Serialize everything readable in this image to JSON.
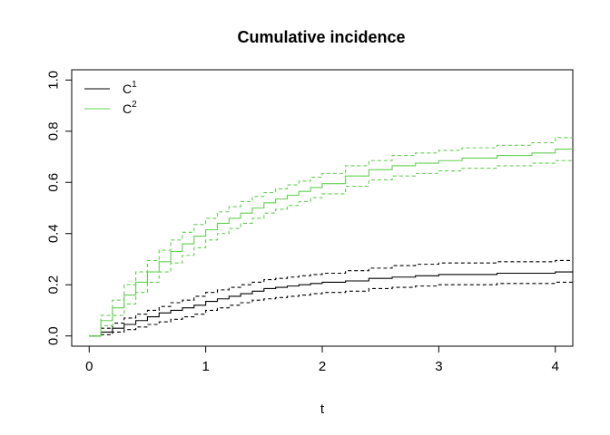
{
  "chart_data": {
    "type": "line",
    "title": "Cumulative incidence",
    "xlabel": "t",
    "ylabel": "",
    "xlim": [
      -0.15,
      4.15
    ],
    "ylim": [
      -0.04,
      1.04
    ],
    "xticks": [
      0,
      1,
      2,
      3,
      4
    ],
    "yticks": [
      0.0,
      0.2,
      0.4,
      0.6,
      0.8,
      1.0
    ],
    "xtick_labels": [
      "0",
      "1",
      "2",
      "3",
      "4"
    ],
    "ytick_labels": [
      "0.0",
      "0.2",
      "0.4",
      "0.6",
      "0.8",
      "1.0"
    ],
    "grid": false,
    "legend_position": "top-left",
    "legend": [
      {
        "base": "C",
        "sup": "1",
        "color": "#000000"
      },
      {
        "base": "C",
        "sup": "2",
        "color": "#61D04F"
      }
    ],
    "series": [
      {
        "color": "#000000",
        "step": true,
        "estimate": {
          "x": [
            0,
            0.1,
            0.2,
            0.3,
            0.4,
            0.5,
            0.6,
            0.7,
            0.8,
            0.9,
            1.0,
            1.1,
            1.2,
            1.3,
            1.4,
            1.5,
            1.6,
            1.7,
            1.8,
            1.9,
            2.0,
            2.2,
            2.4,
            2.6,
            2.8,
            3.0,
            3.5,
            4.0,
            4.15
          ],
          "y": [
            0,
            0.015,
            0.03,
            0.045,
            0.06,
            0.075,
            0.09,
            0.1,
            0.11,
            0.12,
            0.135,
            0.145,
            0.155,
            0.165,
            0.175,
            0.185,
            0.19,
            0.195,
            0.2,
            0.205,
            0.21,
            0.215,
            0.225,
            0.23,
            0.235,
            0.24,
            0.245,
            0.25,
            0.25
          ]
        },
        "lower": {
          "x": [
            0,
            0.1,
            0.2,
            0.3,
            0.4,
            0.5,
            0.6,
            0.7,
            0.8,
            0.9,
            1.0,
            1.1,
            1.2,
            1.3,
            1.4,
            1.5,
            1.6,
            1.7,
            1.8,
            1.9,
            2.0,
            2.2,
            2.4,
            2.6,
            2.8,
            3.0,
            3.5,
            4.0,
            4.15
          ],
          "y": [
            0,
            0.005,
            0.015,
            0.025,
            0.035,
            0.045,
            0.055,
            0.065,
            0.075,
            0.085,
            0.1,
            0.11,
            0.12,
            0.13,
            0.14,
            0.145,
            0.15,
            0.155,
            0.16,
            0.165,
            0.17,
            0.175,
            0.185,
            0.19,
            0.195,
            0.2,
            0.205,
            0.21,
            0.21
          ]
        },
        "upper": {
          "x": [
            0,
            0.1,
            0.2,
            0.3,
            0.4,
            0.5,
            0.6,
            0.7,
            0.8,
            0.9,
            1.0,
            1.1,
            1.2,
            1.3,
            1.4,
            1.5,
            1.6,
            1.7,
            1.8,
            1.9,
            2.0,
            2.2,
            2.4,
            2.6,
            2.8,
            3.0,
            3.5,
            4.0,
            4.15
          ],
          "y": [
            0,
            0.03,
            0.05,
            0.07,
            0.085,
            0.1,
            0.115,
            0.13,
            0.14,
            0.155,
            0.17,
            0.18,
            0.19,
            0.2,
            0.21,
            0.22,
            0.225,
            0.23,
            0.235,
            0.24,
            0.245,
            0.255,
            0.265,
            0.275,
            0.28,
            0.285,
            0.29,
            0.295,
            0.295
          ]
        }
      },
      {
        "color": "#61D04F",
        "step": true,
        "estimate": {
          "x": [
            0,
            0.1,
            0.2,
            0.3,
            0.4,
            0.5,
            0.6,
            0.7,
            0.8,
            0.9,
            1.0,
            1.1,
            1.2,
            1.3,
            1.4,
            1.5,
            1.6,
            1.7,
            1.8,
            1.9,
            2.0,
            2.2,
            2.4,
            2.6,
            2.8,
            3.0,
            3.2,
            3.5,
            3.8,
            4.0,
            4.15
          ],
          "y": [
            0,
            0.06,
            0.11,
            0.16,
            0.21,
            0.25,
            0.29,
            0.33,
            0.36,
            0.39,
            0.415,
            0.44,
            0.46,
            0.48,
            0.5,
            0.52,
            0.535,
            0.55,
            0.565,
            0.58,
            0.595,
            0.625,
            0.65,
            0.665,
            0.675,
            0.685,
            0.695,
            0.705,
            0.715,
            0.73,
            0.73
          ]
        },
        "lower": {
          "x": [
            0,
            0.1,
            0.2,
            0.3,
            0.4,
            0.5,
            0.6,
            0.7,
            0.8,
            0.9,
            1.0,
            1.1,
            1.2,
            1.3,
            1.4,
            1.5,
            1.6,
            1.7,
            1.8,
            1.9,
            2.0,
            2.2,
            2.4,
            2.6,
            2.8,
            3.0,
            3.2,
            3.5,
            3.8,
            4.0,
            4.15
          ],
          "y": [
            0,
            0.04,
            0.08,
            0.125,
            0.17,
            0.21,
            0.25,
            0.285,
            0.315,
            0.345,
            0.375,
            0.4,
            0.42,
            0.44,
            0.46,
            0.48,
            0.495,
            0.51,
            0.525,
            0.54,
            0.555,
            0.585,
            0.61,
            0.625,
            0.635,
            0.645,
            0.655,
            0.665,
            0.675,
            0.685,
            0.685
          ]
        },
        "upper": {
          "x": [
            0,
            0.1,
            0.2,
            0.3,
            0.4,
            0.5,
            0.6,
            0.7,
            0.8,
            0.9,
            1.0,
            1.1,
            1.2,
            1.3,
            1.4,
            1.5,
            1.6,
            1.7,
            1.8,
            1.9,
            2.0,
            2.2,
            2.4,
            2.6,
            2.8,
            3.0,
            3.2,
            3.5,
            3.8,
            4.0,
            4.15
          ],
          "y": [
            0,
            0.08,
            0.14,
            0.2,
            0.25,
            0.295,
            0.335,
            0.375,
            0.405,
            0.435,
            0.46,
            0.485,
            0.505,
            0.525,
            0.545,
            0.56,
            0.575,
            0.59,
            0.605,
            0.62,
            0.635,
            0.665,
            0.685,
            0.705,
            0.715,
            0.725,
            0.735,
            0.745,
            0.755,
            0.775,
            0.775
          ]
        }
      }
    ]
  }
}
